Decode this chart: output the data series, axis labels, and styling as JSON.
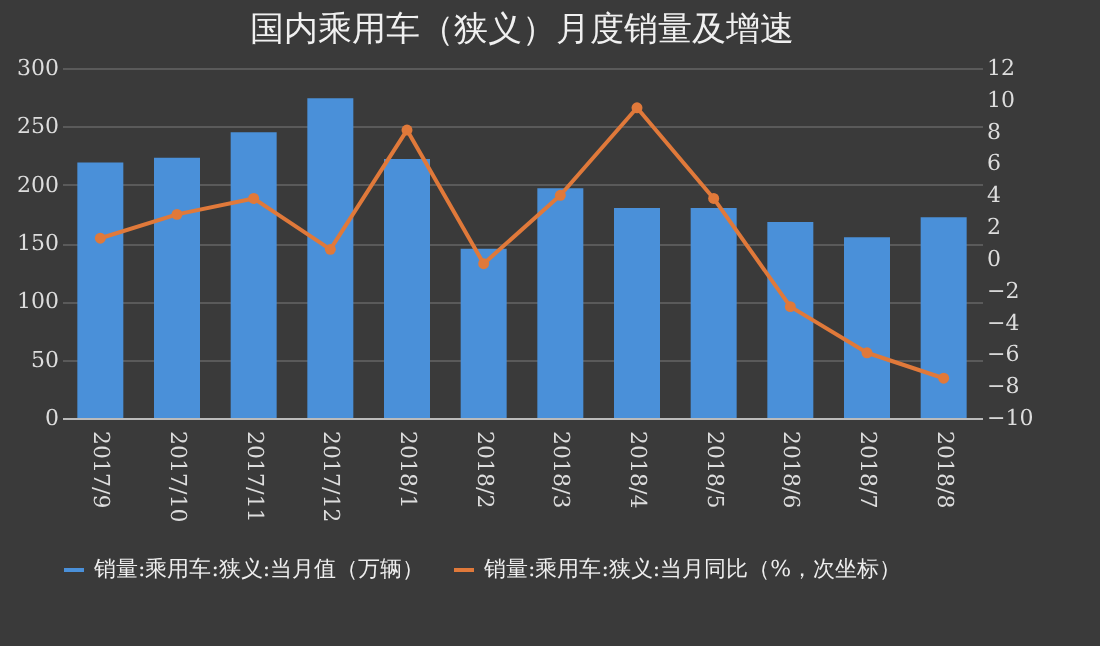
{
  "chart_data": {
    "type": "bar",
    "title": "国内乘用车（狭义）月度销量及增速",
    "categories": [
      "2017/9",
      "2017/10",
      "2017/11",
      "2017/12",
      "2018/1",
      "2018/2",
      "2018/3",
      "2018/4",
      "2018/5",
      "2018/6",
      "2018/7",
      "2018/8"
    ],
    "series": [
      {
        "name": "销量:乘用车:狭义:当月值（万辆）",
        "color": "#4a90d9",
        "values": [
          219,
          223,
          245,
          274,
          222,
          145,
          197,
          180,
          180,
          168,
          155,
          172
        ]
      },
      {
        "name": "销量:乘用车:狭义:当月同比（%，次坐标）",
        "type": "line",
        "axis": "y2",
        "color": "#e0793a",
        "values": [
          1.3,
          2.8,
          3.8,
          0.6,
          8.1,
          -0.3,
          4.0,
          9.5,
          3.8,
          -3.0,
          -5.9,
          -7.5
        ]
      }
    ],
    "ylim": [
      0,
      300
    ],
    "yticks": [
      0,
      50,
      100,
      150,
      200,
      250,
      300
    ],
    "y2lim": [
      -10,
      12
    ],
    "y2ticks": [
      -10,
      -8,
      -6,
      -4,
      -2,
      0,
      2,
      4,
      6,
      8,
      10,
      12
    ],
    "grid": "y",
    "legend": "bottom",
    "marker": "circle",
    "line_style": "solid"
  }
}
